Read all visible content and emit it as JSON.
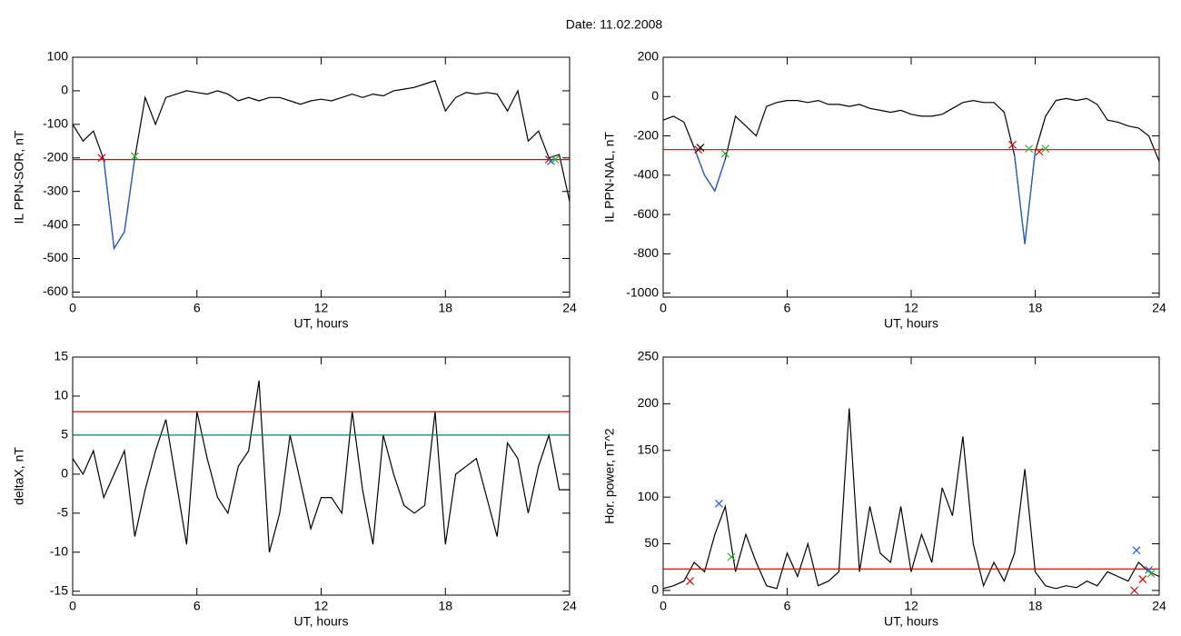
{
  "title": "Date:  11.02.2008",
  "chart_data": [
    {
      "type": "line",
      "ylabel": "IL PPN-SOR, nT",
      "xlabel": "UT, hours",
      "xlim": [
        0,
        24
      ],
      "xticks": [
        0,
        6,
        12,
        18,
        24
      ],
      "ylim": [
        -615,
        100
      ],
      "yticks": [
        100,
        0,
        -100,
        -200,
        -300,
        -400,
        -500,
        -600
      ],
      "x": [
        0,
        0.5,
        1,
        1.5,
        2,
        2.5,
        3,
        3.5,
        4,
        4.5,
        5,
        5.5,
        6,
        6.5,
        7,
        7.5,
        8,
        8.5,
        9,
        9.5,
        10,
        10.5,
        11,
        11.5,
        12,
        12.5,
        13,
        13.5,
        14,
        14.5,
        15,
        15.5,
        16,
        16.5,
        17,
        17.5,
        18,
        18.5,
        19,
        19.5,
        20,
        20.5,
        21,
        21.5,
        22,
        22.5,
        23,
        23.5,
        24
      ],
      "series": [
        {
          "color": "#000000",
          "values": [
            -100,
            -150,
            -120,
            -205,
            -470,
            -420,
            -200,
            -20,
            -100,
            -20,
            -10,
            0,
            -5,
            -10,
            0,
            -10,
            -30,
            -20,
            -30,
            -20,
            -20,
            -30,
            -40,
            -30,
            -25,
            -30,
            -20,
            -10,
            -20,
            -10,
            -15,
            0,
            5,
            10,
            20,
            30,
            -60,
            -20,
            -5,
            -10,
            -5,
            -10,
            -60,
            0,
            -150,
            -120,
            -200,
            -190,
            -330
          ]
        },
        {
          "color": "#1f5fd0",
          "values": [
            null,
            null,
            null,
            -205,
            -470,
            -420,
            -200,
            null,
            null,
            null,
            null,
            null,
            null,
            null,
            null,
            null,
            null,
            null,
            null,
            null,
            null,
            null,
            null,
            null,
            null,
            null,
            null,
            null,
            null,
            null,
            null,
            null,
            null,
            null,
            null,
            null,
            null,
            null,
            null,
            null,
            null,
            null,
            null,
            null,
            null,
            null,
            null,
            null,
            null
          ]
        }
      ],
      "hlines": [
        {
          "value": -205,
          "color": "#e00000"
        }
      ],
      "markers": [
        {
          "x": 1.4,
          "y": -200,
          "color": "#e00000"
        },
        {
          "x": 3.0,
          "y": -195,
          "color": "#20b020"
        },
        {
          "x": 23.0,
          "y": -205,
          "color": "#e00000"
        },
        {
          "x": 23.1,
          "y": -210,
          "color": "#1f5fd0"
        },
        {
          "x": 23.3,
          "y": -205,
          "color": "#20b020"
        }
      ]
    },
    {
      "type": "line",
      "ylabel": "IL PPN-NAL, nT",
      "xlabel": "UT, hours",
      "xlim": [
        0,
        24
      ],
      "xticks": [
        0,
        6,
        12,
        18,
        24
      ],
      "ylim": [
        -1020,
        200
      ],
      "yticks": [
        200,
        0,
        -200,
        -400,
        -600,
        -800,
        -1000
      ],
      "x": [
        0,
        0.5,
        1,
        1.5,
        2,
        2.5,
        3,
        3.5,
        4,
        4.5,
        5,
        5.5,
        6,
        6.5,
        7,
        7.5,
        8,
        8.5,
        9,
        9.5,
        10,
        10.5,
        11,
        11.5,
        12,
        12.5,
        13,
        13.5,
        14,
        14.5,
        15,
        15.5,
        16,
        16.5,
        17,
        17.5,
        18,
        18.5,
        19,
        19.5,
        20,
        20.5,
        21,
        21.5,
        22,
        22.5,
        23,
        23.5,
        24
      ],
      "series": [
        {
          "color": "#000000",
          "values": [
            -120,
            -100,
            -130,
            -260,
            -400,
            -480,
            -320,
            -100,
            -150,
            -200,
            -50,
            -30,
            -20,
            -20,
            -30,
            -20,
            -40,
            -40,
            -50,
            -40,
            -60,
            -70,
            -80,
            -70,
            -90,
            -100,
            -100,
            -90,
            -60,
            -30,
            -20,
            -30,
            -30,
            -80,
            -300,
            -750,
            -280,
            -100,
            -20,
            -10,
            -20,
            -10,
            -40,
            -120,
            -130,
            -150,
            -160,
            -200,
            -330
          ]
        },
        {
          "color": "#1f5fd0",
          "values": [
            null,
            null,
            null,
            -260,
            -400,
            -480,
            -320,
            null,
            null,
            null,
            null,
            null,
            null,
            null,
            null,
            null,
            null,
            null,
            null,
            null,
            null,
            null,
            null,
            null,
            null,
            null,
            null,
            null,
            null,
            null,
            null,
            null,
            null,
            null,
            -300,
            -750,
            -280,
            null,
            null,
            null,
            null,
            null,
            null,
            null,
            null,
            null,
            null,
            null,
            null
          ]
        }
      ],
      "hlines": [
        {
          "value": -270,
          "color": "#e00000"
        }
      ],
      "markers": [
        {
          "x": 1.7,
          "y": -270,
          "color": "#e00000"
        },
        {
          "x": 1.8,
          "y": -260,
          "color": "#000000"
        },
        {
          "x": 3.0,
          "y": -290,
          "color": "#20b020"
        },
        {
          "x": 16.9,
          "y": -245,
          "color": "#e00000"
        },
        {
          "x": 17.7,
          "y": -265,
          "color": "#20b020"
        },
        {
          "x": 18.2,
          "y": -280,
          "color": "#e00000"
        },
        {
          "x": 18.5,
          "y": -265,
          "color": "#20b020"
        }
      ]
    },
    {
      "type": "line",
      "ylabel": "deltaX, nT",
      "xlabel": "UT, hours",
      "xlim": [
        0,
        24
      ],
      "xticks": [
        0,
        6,
        12,
        18,
        24
      ],
      "ylim": [
        -15.5,
        15
      ],
      "yticks": [
        15,
        10,
        5,
        0,
        -5,
        -10,
        -15
      ],
      "x": [
        0,
        0.5,
        1,
        1.5,
        2,
        2.5,
        3,
        3.5,
        4,
        4.5,
        5,
        5.5,
        6,
        6.5,
        7,
        7.5,
        8,
        8.5,
        9,
        9.5,
        10,
        10.5,
        11,
        11.5,
        12,
        12.5,
        13,
        13.5,
        14,
        14.5,
        15,
        15.5,
        16,
        16.5,
        17,
        17.5,
        18,
        18.5,
        19,
        19.5,
        20,
        20.5,
        21,
        21.5,
        22,
        22.5,
        23,
        23.5,
        24
      ],
      "series": [
        {
          "color": "#000000",
          "values": [
            2,
            0,
            3,
            -3,
            0,
            3,
            -8,
            -2,
            3,
            7,
            -1,
            -9,
            8,
            2,
            -3,
            -5,
            1,
            3,
            12,
            -10,
            -5,
            5,
            -1,
            -7,
            -3,
            -3,
            -5,
            8,
            -2,
            -9,
            5,
            0,
            -4,
            -5,
            -4,
            8,
            -9,
            0,
            1,
            2,
            -3,
            -8,
            4,
            2,
            -5,
            1,
            5,
            -2,
            -2
          ]
        }
      ],
      "hlines": [
        {
          "value": 8,
          "color": "#e00000"
        },
        {
          "value": 5,
          "color": "#008080"
        }
      ],
      "markers": []
    },
    {
      "type": "line",
      "ylabel": "Hor. power, nT^2",
      "xlabel": "UT, hours",
      "xlim": [
        0,
        24
      ],
      "xticks": [
        0,
        6,
        12,
        18,
        24
      ],
      "ylim": [
        -5,
        250
      ],
      "yticks": [
        250,
        200,
        150,
        100,
        50,
        0
      ],
      "x": [
        0,
        0.5,
        1,
        1.5,
        2,
        2.5,
        3,
        3.5,
        4,
        4.5,
        5,
        5.5,
        6,
        6.5,
        7,
        7.5,
        8,
        8.5,
        9,
        9.5,
        10,
        10.5,
        11,
        11.5,
        12,
        12.5,
        13,
        13.5,
        14,
        14.5,
        15,
        15.5,
        16,
        16.5,
        17,
        17.5,
        18,
        18.5,
        19,
        19.5,
        20,
        20.5,
        21,
        21.5,
        22,
        22.5,
        23,
        23.5,
        24
      ],
      "series": [
        {
          "color": "#000000",
          "values": [
            2,
            5,
            10,
            30,
            20,
            60,
            90,
            20,
            60,
            30,
            5,
            2,
            40,
            15,
            50,
            5,
            10,
            20,
            195,
            20,
            90,
            40,
            30,
            90,
            20,
            60,
            30,
            110,
            80,
            165,
            50,
            5,
            30,
            10,
            40,
            130,
            20,
            5,
            2,
            5,
            3,
            10,
            5,
            20,
            15,
            10,
            30,
            20,
            15
          ]
        }
      ],
      "hlines": [
        {
          "value": 23,
          "color": "#e00000"
        }
      ],
      "markers": [
        {
          "x": 1.3,
          "y": 10,
          "color": "#e00000"
        },
        {
          "x": 2.7,
          "y": 93,
          "color": "#1f5fd0"
        },
        {
          "x": 3.3,
          "y": 36,
          "color": "#20b020"
        },
        {
          "x": 22.8,
          "y": 0,
          "color": "#e00000"
        },
        {
          "x": 22.9,
          "y": 43,
          "color": "#1f5fd0"
        },
        {
          "x": 23.2,
          "y": 12,
          "color": "#e00000"
        },
        {
          "x": 23.5,
          "y": 22,
          "color": "#1f5fd0"
        },
        {
          "x": 23.6,
          "y": 18,
          "color": "#20b020"
        }
      ]
    }
  ]
}
